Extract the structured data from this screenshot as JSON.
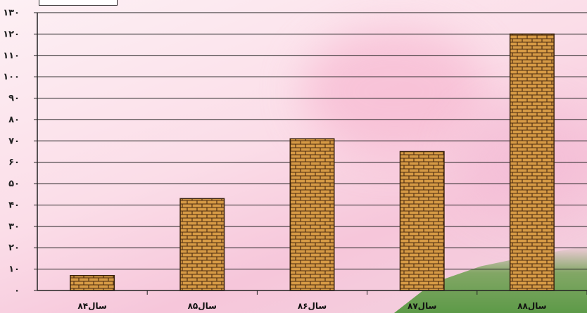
{
  "chart_data": {
    "type": "bar",
    "categories": [
      "سال۸۴",
      "سال۸۵",
      "سال۸۶",
      "سال۸۷",
      "سال۸۸"
    ],
    "values": [
      7,
      43,
      71,
      65,
      120
    ],
    "ylim": [
      0,
      130
    ],
    "yticks": [
      0,
      10,
      20,
      30,
      40,
      50,
      60,
      70,
      80,
      90,
      100,
      110,
      120,
      130
    ],
    "ytick_labels": [
      "۰",
      "۱۰",
      "۲۰",
      "۳۰",
      "۴۰",
      "۵۰",
      "۶۰",
      "۷۰",
      "۸۰",
      "۹۰",
      "۱۰۰",
      "۱۱۰",
      "۱۲۰",
      "۱۳۰"
    ],
    "grid": true,
    "bar_color": "#c8893a",
    "pattern": "brick"
  }
}
